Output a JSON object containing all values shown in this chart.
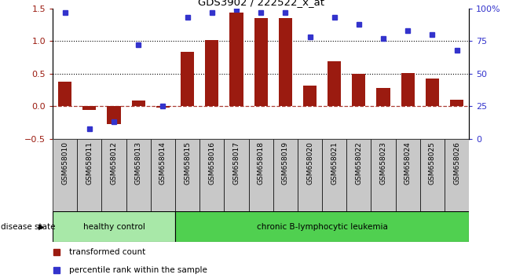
{
  "title": "GDS3902 / 222522_x_at",
  "samples": [
    "GSM658010",
    "GSM658011",
    "GSM658012",
    "GSM658013",
    "GSM658014",
    "GSM658015",
    "GSM658016",
    "GSM658017",
    "GSM658018",
    "GSM658019",
    "GSM658020",
    "GSM658021",
    "GSM658022",
    "GSM658023",
    "GSM658024",
    "GSM658025",
    "GSM658026"
  ],
  "bar_values": [
    0.38,
    -0.05,
    -0.27,
    0.09,
    -0.02,
    0.83,
    1.02,
    1.43,
    1.35,
    1.35,
    0.32,
    0.69,
    0.5,
    0.28,
    0.51,
    0.42,
    0.1
  ],
  "blue_values": [
    97,
    8,
    13,
    72,
    25,
    93,
    97,
    99,
    97,
    97,
    78,
    93,
    88,
    77,
    83,
    80,
    68
  ],
  "bar_color": "#9B1B10",
  "blue_color": "#3333CC",
  "ylim_left": [
    -0.5,
    1.5
  ],
  "ylim_right": [
    0,
    100
  ],
  "yticks_left": [
    -0.5,
    0.0,
    0.5,
    1.0,
    1.5
  ],
  "yticks_right": [
    0,
    25,
    50,
    75,
    100
  ],
  "ytick_labels_right": [
    "0",
    "25",
    "50",
    "75",
    "100%"
  ],
  "dotted_lines": [
    0.5,
    1.0
  ],
  "dash_line": 0.0,
  "healthy_label": "healthy control",
  "leukemia_label": "chronic B-lymphocytic leukemia",
  "disease_state_label": "disease state",
  "legend_bar": "transformed count",
  "legend_dot": "percentile rank within the sample",
  "healthy_count": 5,
  "healthy_color": "#A8E8A8",
  "leukemia_color": "#50D050",
  "background_color": "#FFFFFF",
  "tick_area_color": "#C8C8C8"
}
